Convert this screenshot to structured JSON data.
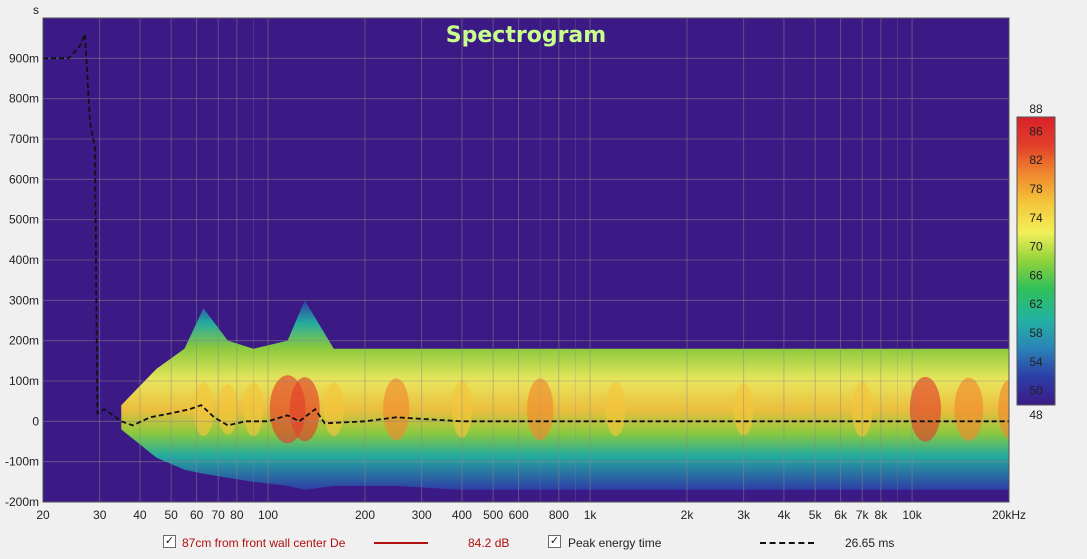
{
  "chart_data": {
    "type": "heatmap",
    "title": "Spectrogram",
    "y_unit_label": "s",
    "x_scale": "log",
    "xlim": [
      20,
      20000
    ],
    "ylim": [
      -0.2,
      1.0
    ],
    "x_ticks": [
      {
        "v": 20,
        "label": "20"
      },
      {
        "v": 30,
        "label": "30"
      },
      {
        "v": 40,
        "label": "40"
      },
      {
        "v": 50,
        "label": "50"
      },
      {
        "v": 60,
        "label": "60"
      },
      {
        "v": 70,
        "label": "70"
      },
      {
        "v": 80,
        "label": "80"
      },
      {
        "v": 100,
        "label": "100"
      },
      {
        "v": 200,
        "label": "200"
      },
      {
        "v": 300,
        "label": "300"
      },
      {
        "v": 400,
        "label": "400"
      },
      {
        "v": 500,
        "label": "500"
      },
      {
        "v": 600,
        "label": "600"
      },
      {
        "v": 800,
        "label": "800"
      },
      {
        "v": 1000,
        "label": "1k"
      },
      {
        "v": 2000,
        "label": "2k"
      },
      {
        "v": 3000,
        "label": "3k"
      },
      {
        "v": 4000,
        "label": "4k"
      },
      {
        "v": 5000,
        "label": "5k"
      },
      {
        "v": 6000,
        "label": "6k"
      },
      {
        "v": 7000,
        "label": "7k"
      },
      {
        "v": 8000,
        "label": "8k"
      },
      {
        "v": 10000,
        "label": "10k"
      },
      {
        "v": 20000,
        "label": "20kHz"
      }
    ],
    "y_ticks": [
      {
        "v": 0.9,
        "label": "900m"
      },
      {
        "v": 0.8,
        "label": "800m"
      },
      {
        "v": 0.7,
        "label": "700m"
      },
      {
        "v": 0.6,
        "label": "600m"
      },
      {
        "v": 0.5,
        "label": "500m"
      },
      {
        "v": 0.4,
        "label": "400m"
      },
      {
        "v": 0.3,
        "label": "300m"
      },
      {
        "v": 0.2,
        "label": "200m"
      },
      {
        "v": 0.1,
        "label": "100m"
      },
      {
        "v": 0.0,
        "label": "0"
      },
      {
        "v": -0.1,
        "label": "-100m"
      },
      {
        "v": -0.2,
        "label": "-200m"
      }
    ],
    "grid": true,
    "colorbar": {
      "min": 48,
      "max": 88,
      "min_label": "48",
      "max_label": "88",
      "ticks": [
        {
          "v": 50,
          "label": "50"
        },
        {
          "v": 54,
          "label": "54"
        },
        {
          "v": 58,
          "label": "58"
        },
        {
          "v": 62,
          "label": "62"
        },
        {
          "v": 66,
          "label": "66"
        },
        {
          "v": 70,
          "label": "70"
        },
        {
          "v": 74,
          "label": "74"
        },
        {
          "v": 78,
          "label": "78"
        },
        {
          "v": 82,
          "label": "82"
        },
        {
          "v": 86,
          "label": "86"
        }
      ],
      "colors": [
        "#3b1a86",
        "#2d3fa8",
        "#2a86b8",
        "#23b3a0",
        "#2fc05c",
        "#8fd23a",
        "#f2f05a",
        "#f4c63a",
        "#f08a2e",
        "#e2402a",
        "#d8202a"
      ]
    },
    "background_color": "#3b1a86",
    "energy_bands": [
      {
        "f": 35,
        "top": 0.04,
        "bottom": -0.02,
        "level": 0.15
      },
      {
        "f": 45,
        "top": 0.13,
        "bottom": -0.09,
        "level": 0.45
      },
      {
        "f": 55,
        "top": 0.18,
        "bottom": -0.12,
        "level": 0.62
      },
      {
        "f": 63,
        "top": 0.28,
        "bottom": -0.13,
        "level": 0.72
      },
      {
        "f": 75,
        "top": 0.2,
        "bottom": -0.14,
        "level": 0.68
      },
      {
        "f": 90,
        "top": 0.18,
        "bottom": -0.15,
        "level": 0.72
      },
      {
        "f": 115,
        "top": 0.2,
        "bottom": -0.16,
        "level": 0.9
      },
      {
        "f": 130,
        "top": 0.3,
        "bottom": -0.17,
        "level": 0.85
      },
      {
        "f": 160,
        "top": 0.18,
        "bottom": -0.16,
        "level": 0.72
      },
      {
        "f": 250,
        "top": 0.18,
        "bottom": -0.16,
        "level": 0.82
      },
      {
        "f": 400,
        "top": 0.18,
        "bottom": -0.17,
        "level": 0.76
      },
      {
        "f": 700,
        "top": 0.18,
        "bottom": -0.17,
        "level": 0.82
      },
      {
        "f": 1200,
        "top": 0.18,
        "bottom": -0.17,
        "level": 0.72
      },
      {
        "f": 3000,
        "top": 0.18,
        "bottom": -0.17,
        "level": 0.7
      },
      {
        "f": 7000,
        "top": 0.18,
        "bottom": -0.17,
        "level": 0.74
      },
      {
        "f": 11000,
        "top": 0.18,
        "bottom": -0.17,
        "level": 0.86
      },
      {
        "f": 15000,
        "top": 0.18,
        "bottom": -0.17,
        "level": 0.84
      },
      {
        "f": 20000,
        "top": 0.18,
        "bottom": -0.17,
        "level": 0.78
      }
    ],
    "peak_energy_time": [
      {
        "f": 20,
        "t": 0.9
      },
      {
        "f": 24,
        "t": 0.9
      },
      {
        "f": 26,
        "t": 0.93
      },
      {
        "f": 27,
        "t": 0.96
      },
      {
        "f": 28,
        "t": 0.74
      },
      {
        "f": 29,
        "t": 0.68
      },
      {
        "f": 29.5,
        "t": 0.02
      },
      {
        "f": 31,
        "t": 0.03
      },
      {
        "f": 35,
        "t": 0.0
      },
      {
        "f": 38,
        "t": -0.01
      },
      {
        "f": 43,
        "t": 0.01
      },
      {
        "f": 50,
        "t": 0.02
      },
      {
        "f": 57,
        "t": 0.03
      },
      {
        "f": 62,
        "t": 0.04
      },
      {
        "f": 68,
        "t": 0.01
      },
      {
        "f": 75,
        "t": -0.01
      },
      {
        "f": 85,
        "t": 0.0
      },
      {
        "f": 100,
        "t": 0.0
      },
      {
        "f": 115,
        "t": 0.015
      },
      {
        "f": 125,
        "t": 0.0
      },
      {
        "f": 140,
        "t": 0.03
      },
      {
        "f": 150,
        "t": -0.005
      },
      {
        "f": 200,
        "t": 0.0
      },
      {
        "f": 250,
        "t": 0.01
      },
      {
        "f": 400,
        "t": 0.0
      },
      {
        "f": 1000,
        "t": 0.0
      },
      {
        "f": 20000,
        "t": 0.0
      }
    ]
  },
  "legend": {
    "series1_label": "87cm from front wall center De",
    "series1_color": "#b01010",
    "series1_value": "84.2 dB",
    "series2_label": "Peak energy time",
    "series2_value": "26.65 ms"
  }
}
